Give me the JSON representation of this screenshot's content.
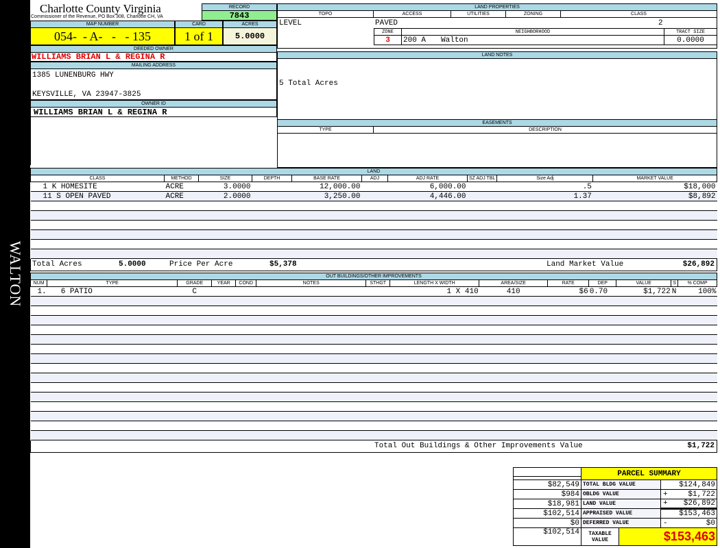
{
  "side_label": "WALTON",
  "header": {
    "county": "Charlotte County Virginia",
    "subtitle": "Commissioner of the Revenue, PO Box 308, Charlotte CH, VA",
    "record_label": "RECORD",
    "record": "7843",
    "map_label": "MAP NUMBER",
    "map_number": "054-  - A-   -   - 135",
    "card_label": "CARD",
    "card": "1 of 1",
    "acres_label": "ACRES",
    "acres": "5.0000"
  },
  "owner": {
    "deeded_label": "DEEDED OWNER",
    "deeded": "WILLIAMS BRIAN L & REGINA R",
    "mailing_label": "MAILING ADDRESS",
    "address1": "1385 LUNENBURG HWY",
    "address2": "KEYSVILLE, VA 23947-3825",
    "id_label": "OWNER ID",
    "id": "WILLIAMS BRIAN L & REGINA R"
  },
  "land_properties": {
    "label": "LAND PROPERTIES",
    "headers": [
      "TOPO",
      "ACCESS",
      "UTILITIES",
      "ZONING",
      "CLASS"
    ],
    "topo": "LEVEL",
    "access": "PAVED",
    "class": "2",
    "zone_label": "ZONE",
    "neighborhood_label": "NEIGHBORHOOD",
    "tract_label": "TRACT SIZE",
    "zone": "3",
    "neighborhood_code": "200 A",
    "neighborhood": "Walton",
    "tract_size": "0.0000"
  },
  "land_notes": {
    "label": "LAND NOTES",
    "text": "5 Total Acres"
  },
  "easements": {
    "label": "EASEMENTS",
    "type_label": "TYPE",
    "desc_label": "DESCRIPTION"
  },
  "land": {
    "label": "LAND",
    "headers": [
      "CLASS",
      "METHOD",
      "SIZE",
      "DEPTH",
      "BASE RATE",
      "ADJ",
      "ADJ RATE",
      "SZ ADJ TBL",
      "Size Adj",
      "MARKET VALUE"
    ],
    "rows": [
      [
        "1 K HOMESITE",
        "ACRE",
        "3.0000",
        "",
        "12,000.00",
        "",
        "6,000.00",
        "",
        ".5",
        "$18,000"
      ],
      [
        "11 S OPEN PAVED",
        "ACRE",
        "2.0000",
        "",
        "3,250.00",
        "",
        "4,446.00",
        "",
        "1.37",
        "$8,892"
      ]
    ],
    "total_acres_label": "Total Acres",
    "total_acres": "5.0000",
    "ppa_label": "Price Per Acre",
    "ppa": "$5,378",
    "lmv_label": "Land Market Value",
    "lmv": "$26,892"
  },
  "outbuildings": {
    "label": "OUT BUILDINGS/OTHER IMPROVEMENTS",
    "headers": [
      "NUM",
      "TYPE",
      "GRADE",
      "YEAR",
      "COND",
      "NOTES",
      "STHGT",
      "LENGTH X WIDTH",
      "AREA/SIZE",
      "RATE",
      "DEP",
      "VALUE",
      "S",
      "% COMP"
    ],
    "rows": [
      [
        "1.",
        "6 PATIO",
        "C",
        "",
        "",
        "",
        "",
        "1 X 410",
        "410",
        "$6",
        "0.70",
        "$1,722",
        "N",
        "100%"
      ]
    ],
    "total_label": "Total Out Buildings & Other Improvements Value",
    "total": "$1,722"
  },
  "summary": {
    "title": "PARCEL SUMMARY",
    "rows": [
      {
        "left": "$82,549",
        "label": "TOTAL BLDG VALUE",
        "op": "",
        "value": "$124,849"
      },
      {
        "left": "$984",
        "label": "OBLDG VALUE",
        "op": "+",
        "value": "$1,722"
      },
      {
        "left": "$18,981",
        "label": "LAND VALUE",
        "op": "+",
        "value": "$26,892"
      },
      {
        "left": "$102,514",
        "label": "APPRAISED VALUE",
        "op": "",
        "value": "$153,463"
      },
      {
        "left": "$0",
        "label": "DEFERRED VALUE",
        "op": "-",
        "value": "$0"
      }
    ],
    "taxable_left": "$102,514",
    "taxable_label": "TAXABLE VALUE",
    "taxable": "$153,463"
  },
  "colors": {
    "label_bg": "#add8e6",
    "highlight": "#ffff00",
    "record_bg": "#90ee90",
    "owner_red": "#e00000"
  }
}
